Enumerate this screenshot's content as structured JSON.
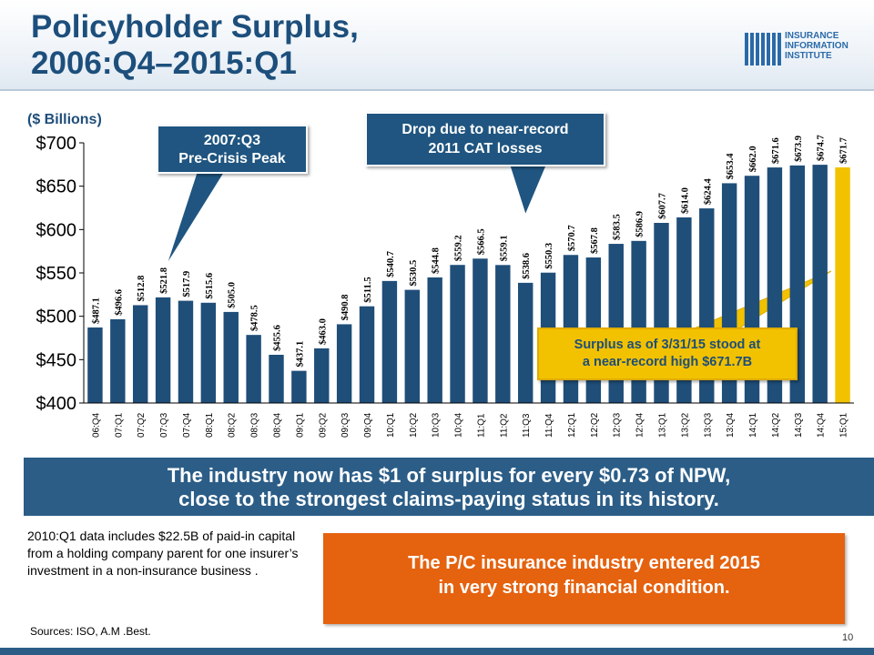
{
  "header": {
    "title_line1": "Policyholder Surplus,",
    "title_line2": "2006:Q4–2015:Q1",
    "logo_line1": "INSURANCE",
    "logo_line2": "INFORMATION",
    "logo_line3": "INSTITUTE"
  },
  "colors": {
    "bar": "#1f4e79",
    "highlight": "#f2c200",
    "banner": "#2b5d87",
    "orange": "#e5620f"
  },
  "chart_data": {
    "type": "bar",
    "ylabel": "($ Billions)",
    "ylim": [
      400,
      700
    ],
    "yticks": [
      400,
      450,
      500,
      550,
      600,
      650,
      700
    ],
    "ytick_labels": [
      "$400",
      "$450",
      "$500",
      "$550",
      "$600",
      "$650",
      "$700"
    ],
    "categories": [
      "06:Q4",
      "07:Q1",
      "07:Q2",
      "07:Q3",
      "07:Q4",
      "08:Q1",
      "08:Q2",
      "08:Q3",
      "08:Q4",
      "09:Q1",
      "09:Q2",
      "09:Q3",
      "09:Q4",
      "10:Q1",
      "10:Q2",
      "10:Q3",
      "10:Q4",
      "11:Q1",
      "11:Q2",
      "11:Q3",
      "11:Q4",
      "12:Q1",
      "12:Q2",
      "12:Q3",
      "12:Q4",
      "13:Q1",
      "13:Q2",
      "13:Q3",
      "13:Q4",
      "14:Q1",
      "14:Q2",
      "14:Q3",
      "14:Q4",
      "15:Q1"
    ],
    "values": [
      487.1,
      496.6,
      512.8,
      521.8,
      517.9,
      515.6,
      505.0,
      478.5,
      455.6,
      437.1,
      463.0,
      490.8,
      511.5,
      540.7,
      530.5,
      544.8,
      559.2,
      566.5,
      559.1,
      538.6,
      550.3,
      570.7,
      567.8,
      583.5,
      586.9,
      607.7,
      614.0,
      624.4,
      653.4,
      662.0,
      671.6,
      673.9,
      674.7,
      671.7
    ],
    "labels": [
      "$487.1",
      "$496.6",
      "$512.8",
      "$521.8",
      "$517.9",
      "$515.6",
      "$505.0",
      "$478.5",
      "$455.6",
      "$437.1",
      "$463.0",
      "$490.8",
      "$511.5",
      "$540.7",
      "$530.5",
      "$544.8",
      "$559.2",
      "$566.5",
      "$559.1",
      "$538.6",
      "$550.3",
      "$570.7",
      "$567.8",
      "$583.5",
      "$586.9",
      "$607.7",
      "$614.0",
      "$624.4",
      "$653.4",
      "$662.0",
      "$671.6",
      "$673.9",
      "$674.7",
      "$671.7"
    ],
    "highlight_category": "15:Q1",
    "annotations": [
      "2007:Q3 Pre-Crisis Peak",
      "Drop due to near-record 2011 CAT losses",
      "Surplus as of 3/31/15 stood at a near-record high $671.7B"
    ]
  },
  "callouts": {
    "peak_line1": "2007:Q3",
    "peak_line2": "Pre-Crisis Peak",
    "drop_line1": "Drop due to near-record",
    "drop_line2": "2011 CAT losses",
    "surplus_line1": "Surplus as of 3/31/15 stood at",
    "surplus_line2": "a near-record high $671.7B"
  },
  "banner": {
    "line1": "The industry now has $1 of surplus for every $0.73 of NPW,",
    "line2": "close to the strongest claims-paying status in its history."
  },
  "footnote": "2010:Q1 data includes $22.5B of paid-in capital from a holding company parent for one insurer’s investment in a non-insurance business .",
  "sources": "Sources: ISO, A.M .Best.",
  "orange_box": {
    "line1": "The P/C insurance industry entered 2015",
    "line2": "in very strong financial condition."
  },
  "page_number": "10"
}
